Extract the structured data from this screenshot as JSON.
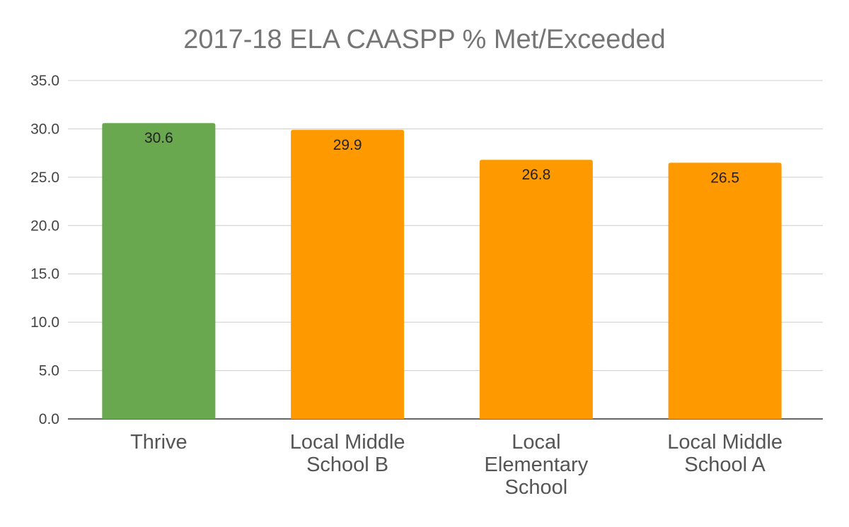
{
  "chart_data": {
    "type": "bar",
    "title": "2017-18 ELA CAASPP % Met/Exceeded",
    "categories": [
      [
        "Thrive"
      ],
      [
        "Local Middle",
        "School B"
      ],
      [
        "Local",
        "Elementary",
        "School"
      ],
      [
        "Local Middle",
        "School A"
      ]
    ],
    "values": [
      30.6,
      29.9,
      26.8,
      26.5
    ],
    "data_labels": [
      "30.6",
      "29.9",
      "26.8",
      "26.5"
    ],
    "bar_colors": [
      "#6aa84f",
      "#ff9900",
      "#ff9900",
      "#ff9900"
    ],
    "ylim": [
      0,
      35
    ],
    "yticks": [
      0,
      5,
      10,
      15,
      20,
      25,
      30,
      35
    ],
    "ytick_labels": [
      "0.0",
      "5.0",
      "10.0",
      "15.0",
      "20.0",
      "25.0",
      "30.0",
      "35.0"
    ],
    "xlabel": "",
    "ylabel": "",
    "grid": true,
    "legend": "none"
  }
}
